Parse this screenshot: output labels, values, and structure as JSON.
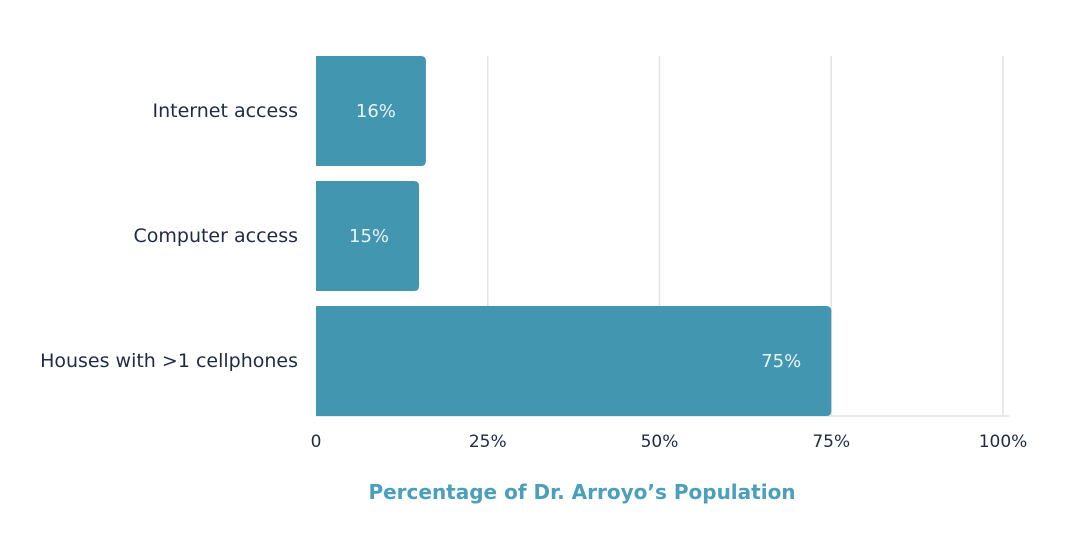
{
  "chart_data": {
    "type": "bar",
    "orientation": "horizontal",
    "categories": [
      "Internet access",
      "Computer access",
      "Houses with >1 cellphones"
    ],
    "values": [
      16,
      15,
      75
    ],
    "value_labels": [
      "16%",
      "15%",
      "75%"
    ],
    "xlabel": "Percentage of Dr. Arroyo’s Population",
    "ylabel": "",
    "xlim": [
      0,
      100
    ],
    "xticks": [
      0,
      25,
      50,
      75,
      100
    ],
    "xtick_labels": [
      "0",
      "25%",
      "50%",
      "75%",
      "100%"
    ],
    "grid": true,
    "legend": "none",
    "colors": {
      "bar": "#4296b0",
      "axis_title": "#4a9fbd",
      "text": "#1f2a44",
      "gridline": "#e3e3e3"
    }
  }
}
